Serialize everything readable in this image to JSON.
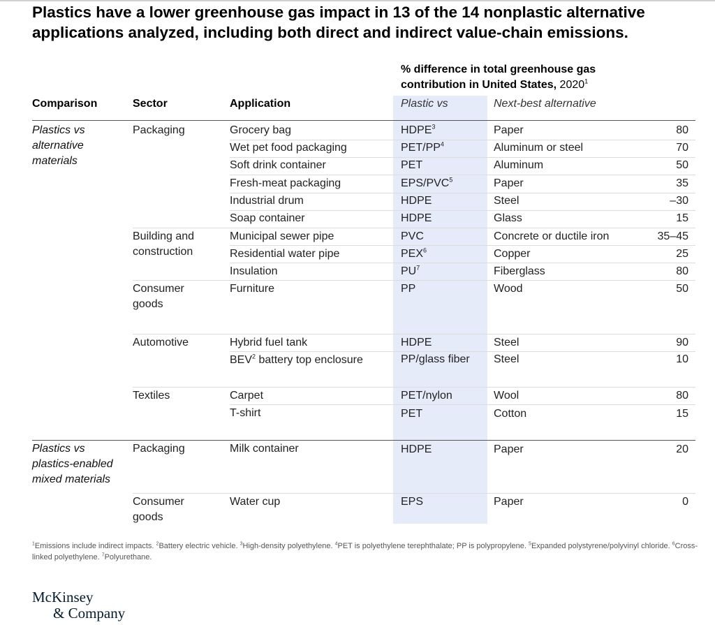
{
  "title": "Plastics have a lower greenhouse gas impact in 13 of the 14 nonplastic alternative applications analyzed, including both direct and indirect value-chain emissions.",
  "header": {
    "pct_line1": "% difference in total greenhouse gas",
    "pct_line2": "contribution in United States,",
    "pct_year": " 2020",
    "pct_sup": "1",
    "comparison": "Comparison",
    "sector": "Sector",
    "application": "Application",
    "plastic_vs": "Plastic vs",
    "next_best": "Next-best alternative"
  },
  "comparisons": [
    "Plastics vs alternative materials",
    "Plastics vs plastics-enabled mixed materials"
  ],
  "sectors": {
    "packaging1": "Packaging",
    "building": "Building and construction",
    "consumer1": "Consumer goods",
    "automotive": "Automotive",
    "textiles": "Textiles",
    "packaging2": "Packaging",
    "consumer2": "Consumer goods"
  },
  "rows": [
    {
      "application": "Grocery bag",
      "plastic": "HDPE",
      "plastic_sup": "3",
      "alternative": "Paper",
      "value": "80"
    },
    {
      "application": "Wet pet food packaging",
      "plastic": "PET/PP",
      "plastic_sup": "4",
      "alternative": "Aluminum or steel",
      "value": "70"
    },
    {
      "application": "Soft drink container",
      "plastic": "PET",
      "plastic_sup": "",
      "alternative": "Aluminum",
      "value": "50"
    },
    {
      "application": "Fresh-meat packaging",
      "plastic": "EPS/PVC",
      "plastic_sup": "5",
      "alternative": "Paper",
      "value": "35"
    },
    {
      "application": "Industrial drum",
      "plastic": "HDPE",
      "plastic_sup": "",
      "alternative": "Steel",
      "value": "–30"
    },
    {
      "application": "Soap container",
      "plastic": "HDPE",
      "plastic_sup": "",
      "alternative": "Glass",
      "value": "15"
    },
    {
      "application": "Municipal sewer pipe",
      "plastic": "PVC",
      "plastic_sup": "",
      "alternative": "Concrete or ductile iron",
      "value": "35–45"
    },
    {
      "application": "Residential water pipe",
      "plastic": "PEX",
      "plastic_sup": "6",
      "alternative": "Copper",
      "value": "25"
    },
    {
      "application": "Insulation",
      "plastic": "PU",
      "plastic_sup": "7",
      "alternative": "Fiberglass",
      "value": "80"
    },
    {
      "application": "Furniture",
      "plastic": "PP",
      "plastic_sup": "",
      "alternative": "Wood",
      "value": "50"
    },
    {
      "application": "Hybrid fuel tank",
      "plastic": "HDPE",
      "plastic_sup": "",
      "alternative": "Steel",
      "value": "90"
    },
    {
      "application": "BEV",
      "application_sup": "2",
      "application_rest": " battery top enclosure",
      "plastic": "PP/glass fiber",
      "plastic_sup": "",
      "alternative": "Steel",
      "value": "10"
    },
    {
      "application": "Carpet",
      "plastic": "PET/nylon",
      "plastic_sup": "",
      "alternative": "Wool",
      "value": "80"
    },
    {
      "application": "T-shirt",
      "plastic": "PET",
      "plastic_sup": "",
      "alternative": "Cotton",
      "value": "15"
    },
    {
      "application": "Milk container",
      "plastic": "HDPE",
      "plastic_sup": "",
      "alternative": "Paper",
      "value": "20"
    },
    {
      "application": "Water cup",
      "plastic": "EPS",
      "plastic_sup": "",
      "alternative": "Paper",
      "value": "0"
    }
  ],
  "footnotes": [
    {
      "sup": "1",
      "text": "Emissions include indirect impacts. "
    },
    {
      "sup": "2",
      "text": "Battery electric vehicle. "
    },
    {
      "sup": "3",
      "text": "High-density polyethylene. "
    },
    {
      "sup": "4",
      "text": "PET is polyethylene terephthalate; PP is polypropylene. "
    },
    {
      "sup": "5",
      "text": "Expanded polystyrene/polyvinyl chloride. "
    },
    {
      "sup": "6",
      "text": "Cross-linked polyethylene. "
    },
    {
      "sup": "7",
      "text": "Polyurethane."
    }
  ],
  "logo": {
    "line1": "McKinsey",
    "line2": "& Company"
  }
}
